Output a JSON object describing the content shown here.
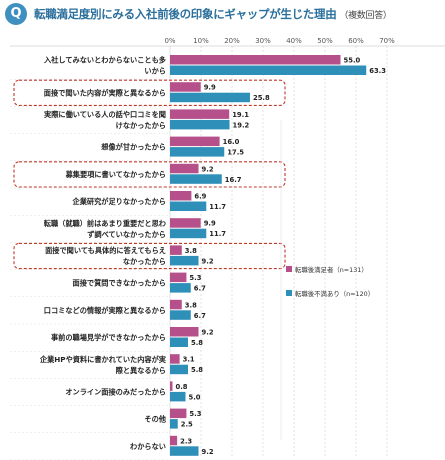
{
  "header": {
    "badge": "Q",
    "title": "転職満足度別にみる入社前後の印象にギャップが生じた理由",
    "note": "（複数回答）"
  },
  "colors": {
    "satisfied": "#b5508a",
    "dissatisfied": "#2e8fb8",
    "highlight": "#c0392b",
    "grid": "#cfcfcf"
  },
  "chart_data": {
    "type": "bar",
    "orientation": "horizontal",
    "unit": "%",
    "xlim": [
      0,
      70
    ],
    "xticks": [
      "0%",
      "10%",
      "20%",
      "30%",
      "40%",
      "50%",
      "60%",
      "70%"
    ],
    "categories": [
      [
        "入社してみないとわからないことも多",
        "いから"
      ],
      [
        "面接で聞いた内容が実際と異なるから"
      ],
      [
        "実際に働いている人の話や口コミを聞",
        "けなかったから"
      ],
      [
        "想像が甘かったから"
      ],
      [
        "募集要項に書いてなかったから"
      ],
      [
        "企業研究が足りなかったから"
      ],
      [
        "転職（就職）前はあまり重要だと思わ",
        "ず調べていなかったから"
      ],
      [
        "面接で聞いても具体的に答えてもらえ",
        "なかったから"
      ],
      [
        "面接で質問できなかったから"
      ],
      [
        "口コミなどの情報が実際と異なるから"
      ],
      [
        "事前の職場見学ができなかったから"
      ],
      [
        "企業HPや資料に書かれていた内容が実",
        "際と異なるから"
      ],
      [
        "オンライン面接のみだったから"
      ],
      [
        "その他"
      ],
      [
        "わからない"
      ]
    ],
    "series": [
      {
        "name": "転職後満足者（n=131）",
        "values": [
          55.0,
          9.9,
          19.1,
          16.0,
          9.2,
          6.9,
          9.9,
          3.8,
          5.3,
          3.8,
          9.2,
          3.1,
          0.8,
          5.3,
          2.3
        ]
      },
      {
        "name": "転職後不満あり（n=120）",
        "values": [
          63.3,
          25.8,
          19.2,
          17.5,
          16.7,
          11.7,
          11.7,
          9.2,
          6.7,
          6.7,
          5.8,
          5.8,
          5.0,
          2.5,
          9.2
        ]
      }
    ],
    "highlighted_categories": [
      1,
      4,
      7
    ],
    "legend_position": "right-middle",
    "grid": true
  }
}
